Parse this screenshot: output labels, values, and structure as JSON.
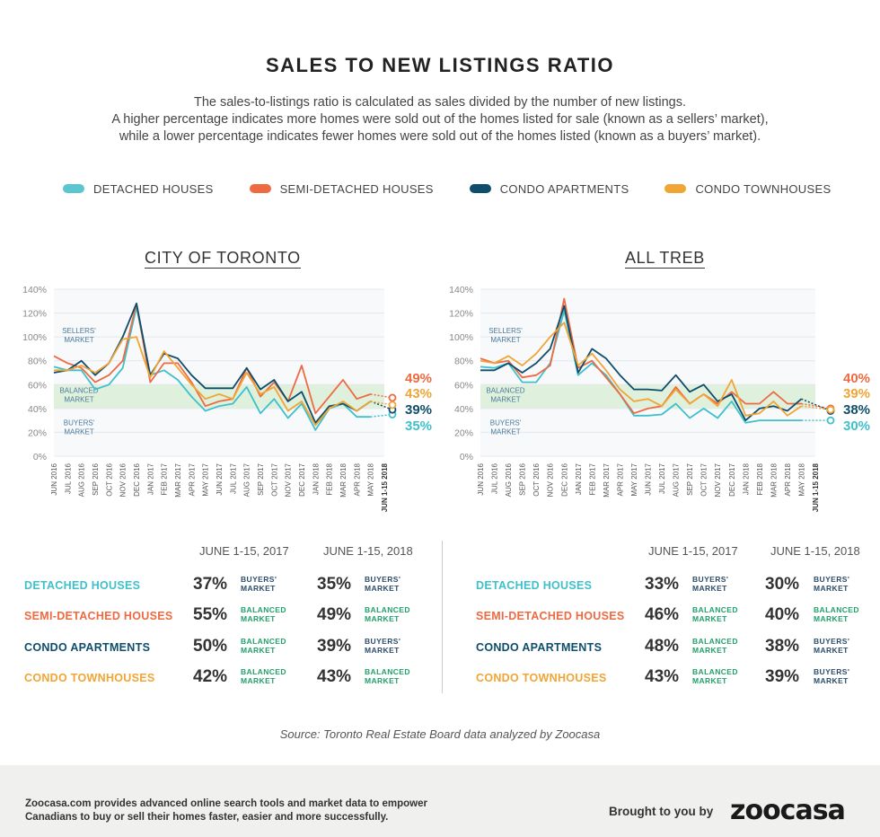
{
  "title": "SALES TO NEW LISTINGS RATIO",
  "subtitle": [
    "The sales-to-listings ratio is calculated as sales divided by the number of new listings.",
    "A higher percentage indicates more homes were sold out of the homes listed for sale (known as a sellers’ market),",
    "while a lower percentage indicates fewer homes were sold out of the homes listed (known as a buyers’ market)."
  ],
  "legend": [
    {
      "label": "DETACHED HOUSES",
      "color": "#5bc5d0"
    },
    {
      "label": "SEMI-DETACHED HOUSES",
      "color": "#ee6a42"
    },
    {
      "label": "CONDO APARTMENTS",
      "color": "#0e4d6b"
    },
    {
      "label": "CONDO TOWNHOUSES",
      "color": "#f0a535"
    }
  ],
  "colors": {
    "detached": "#3fc0cb",
    "semi": "#ee6a42",
    "apt": "#0e4d6b",
    "town": "#f0a535",
    "balanced_band": "#dff1dc",
    "buyers": "#2d4d6a",
    "balanced": "#22a06b",
    "axis_text": "#888"
  },
  "chart_data": [
    {
      "type": "line",
      "title": "CITY OF TORONTO",
      "ylim": [
        0,
        140
      ],
      "yticks": [
        "0%",
        "20%",
        "40%",
        "60%",
        "80%",
        "100%",
        "120%",
        "140%"
      ],
      "bands": {
        "sellers": "SELLERS' MARKET",
        "balanced": "BALANCED MARKET",
        "buyers": "BUYERS' MARKET",
        "balanced_range": [
          40,
          60
        ]
      },
      "categories": [
        "JUN 2016",
        "JUL 2016",
        "AUG 2016",
        "SEP 2016",
        "OCT 2016",
        "NOV 2016",
        "DEC 2016",
        "JAN 2017",
        "FEB 2017",
        "MAR 2017",
        "APR 2017",
        "MAY 2017",
        "JUN 2017",
        "JUL 2017",
        "AUG 2017",
        "SEP 2017",
        "OCT 2017",
        "NOV 2017",
        "DEC 2017",
        "JAN 2018",
        "FEB 2018",
        "MAR 2018",
        "APR 2018",
        "MAY 2018",
        "JUN 1-15 2018"
      ],
      "series": [
        {
          "name": "DETACHED HOUSES",
          "key": "detached",
          "values": [
            75,
            72,
            72,
            56,
            60,
            74,
            125,
            68,
            72,
            64,
            50,
            38,
            42,
            44,
            58,
            36,
            48,
            32,
            44,
            22,
            40,
            44,
            33,
            33,
            35
          ]
        },
        {
          "name": "SEMI-DETACHED HOUSES",
          "key": "semi",
          "values": [
            84,
            78,
            74,
            62,
            68,
            80,
            128,
            62,
            78,
            78,
            62,
            42,
            46,
            48,
            74,
            50,
            62,
            46,
            76,
            36,
            50,
            64,
            48,
            52,
            49
          ]
        },
        {
          "name": "CONDO APARTMENTS",
          "key": "apt",
          "values": [
            70,
            72,
            80,
            68,
            78,
            100,
            128,
            68,
            86,
            82,
            68,
            57,
            57,
            57,
            74,
            56,
            64,
            46,
            54,
            28,
            42,
            44,
            38,
            46,
            39
          ]
        },
        {
          "name": "CONDO TOWNHOUSES",
          "key": "town",
          "values": [
            72,
            72,
            76,
            70,
            78,
            98,
            100,
            66,
            88,
            74,
            60,
            48,
            52,
            48,
            70,
            52,
            58,
            38,
            46,
            26,
            40,
            46,
            38,
            46,
            43
          ]
        }
      ],
      "end_labels": [
        "49%",
        "43%",
        "39%",
        "35%"
      ]
    },
    {
      "type": "line",
      "title": "ALL TREB",
      "ylim": [
        0,
        140
      ],
      "yticks": [
        "0%",
        "20%",
        "40%",
        "60%",
        "80%",
        "100%",
        "120%",
        "140%"
      ],
      "bands": {
        "sellers": "SELLERS' MARKET",
        "balanced": "BALANCED MARKET",
        "buyers": "BUYERS' MARKET",
        "balanced_range": [
          40,
          60
        ]
      },
      "categories": [
        "JUN 2016",
        "JUL 2016",
        "AUG 2016",
        "SEP 2016",
        "OCT 2016",
        "NOV 2016",
        "DEC 2016",
        "JAN 2017",
        "FEB 2017",
        "MAR 2017",
        "APR 2017",
        "MAY 2017",
        "JUN 2017",
        "JUL 2017",
        "AUG 2017",
        "SEP 2017",
        "OCT 2017",
        "NOV 2017",
        "DEC 2017",
        "JAN 2018",
        "FEB 2018",
        "MAR 2018",
        "APR 2018",
        "MAY 2018",
        "JUN 1-15 2018"
      ],
      "series": [
        {
          "name": "DETACHED HOUSES",
          "key": "detached",
          "values": [
            75,
            74,
            78,
            62,
            62,
            78,
            122,
            68,
            78,
            68,
            52,
            34,
            34,
            35,
            44,
            32,
            40,
            32,
            46,
            28,
            30,
            30,
            30,
            30,
            30
          ]
        },
        {
          "name": "SEMI-DETACHED HOUSES",
          "key": "semi",
          "values": [
            82,
            78,
            80,
            66,
            68,
            76,
            132,
            74,
            80,
            66,
            52,
            36,
            40,
            42,
            58,
            44,
            52,
            44,
            54,
            44,
            44,
            54,
            44,
            44,
            40
          ]
        },
        {
          "name": "CONDO APARTMENTS",
          "key": "apt",
          "values": [
            72,
            72,
            78,
            70,
            78,
            90,
            126,
            70,
            90,
            82,
            68,
            56,
            56,
            55,
            68,
            54,
            60,
            46,
            52,
            30,
            40,
            42,
            38,
            48,
            38
          ]
        },
        {
          "name": "CONDO TOWNHOUSES",
          "key": "town",
          "values": [
            80,
            78,
            84,
            76,
            86,
            100,
            112,
            76,
            86,
            72,
            56,
            46,
            48,
            42,
            56,
            44,
            52,
            42,
            64,
            34,
            36,
            46,
            34,
            42,
            39
          ]
        }
      ],
      "end_labels": [
        "40%",
        "39%",
        "38%",
        "30%"
      ]
    }
  ],
  "tables": [
    {
      "headers": [
        "JUNE 1-15, 2017",
        "JUNE 1-15, 2018"
      ],
      "rows": [
        {
          "label": "DETACHED HOUSES",
          "key": "detached",
          "v2017": "37%",
          "m2017": [
            "BUYERS'",
            "MARKET"
          ],
          "t2017": "buyers",
          "v2018": "35%",
          "m2018": [
            "BUYERS'",
            "MARKET"
          ],
          "t2018": "buyers"
        },
        {
          "label": "SEMI-DETACHED HOUSES",
          "key": "semi",
          "v2017": "55%",
          "m2017": [
            "BALANCED",
            "MARKET"
          ],
          "t2017": "balanced",
          "v2018": "49%",
          "m2018": [
            "BALANCED",
            "MARKET"
          ],
          "t2018": "balanced"
        },
        {
          "label": "CONDO APARTMENTS",
          "key": "apt",
          "v2017": "50%",
          "m2017": [
            "BALANCED",
            "MARKET"
          ],
          "t2017": "balanced",
          "v2018": "39%",
          "m2018": [
            "BUYERS'",
            "MARKET"
          ],
          "t2018": "buyers"
        },
        {
          "label": "CONDO TOWNHOUSES",
          "key": "town",
          "v2017": "42%",
          "m2017": [
            "BALANCED",
            "MARKET"
          ],
          "t2017": "balanced",
          "v2018": "43%",
          "m2018": [
            "BALANCED",
            "MARKET"
          ],
          "t2018": "balanced"
        }
      ]
    },
    {
      "headers": [
        "JUNE 1-15, 2017",
        "JUNE 1-15, 2018"
      ],
      "rows": [
        {
          "label": "DETACHED HOUSES",
          "key": "detached",
          "v2017": "33%",
          "m2017": [
            "BUYERS'",
            "MARKET"
          ],
          "t2017": "buyers",
          "v2018": "30%",
          "m2018": [
            "BUYERS'",
            "MARKET"
          ],
          "t2018": "buyers"
        },
        {
          "label": "SEMI-DETACHED HOUSES",
          "key": "semi",
          "v2017": "46%",
          "m2017": [
            "BALANCED",
            "MARKET"
          ],
          "t2017": "balanced",
          "v2018": "40%",
          "m2018": [
            "BALANCED",
            "MARKET"
          ],
          "t2018": "balanced"
        },
        {
          "label": "CONDO APARTMENTS",
          "key": "apt",
          "v2017": "48%",
          "m2017": [
            "BALANCED",
            "MARKET"
          ],
          "t2017": "balanced",
          "v2018": "38%",
          "m2018": [
            "BUYERS'",
            "MARKET"
          ],
          "t2018": "buyers"
        },
        {
          "label": "CONDO TOWNHOUSES",
          "key": "town",
          "v2017": "43%",
          "m2017": [
            "BALANCED",
            "MARKET"
          ],
          "t2017": "balanced",
          "v2018": "39%",
          "m2018": [
            "BUYERS'",
            "MARKET"
          ],
          "t2018": "buyers"
        }
      ]
    }
  ],
  "source": "Source: Toronto Real Estate Board data analyzed by Zoocasa",
  "footer": {
    "line1": "Zoocasa.com provides advanced online search tools and market data to empower",
    "line2": "Canadians to buy or sell their homes faster, easier and more successfully.",
    "brought": "Brought to you by",
    "logo": "zoocasa"
  }
}
